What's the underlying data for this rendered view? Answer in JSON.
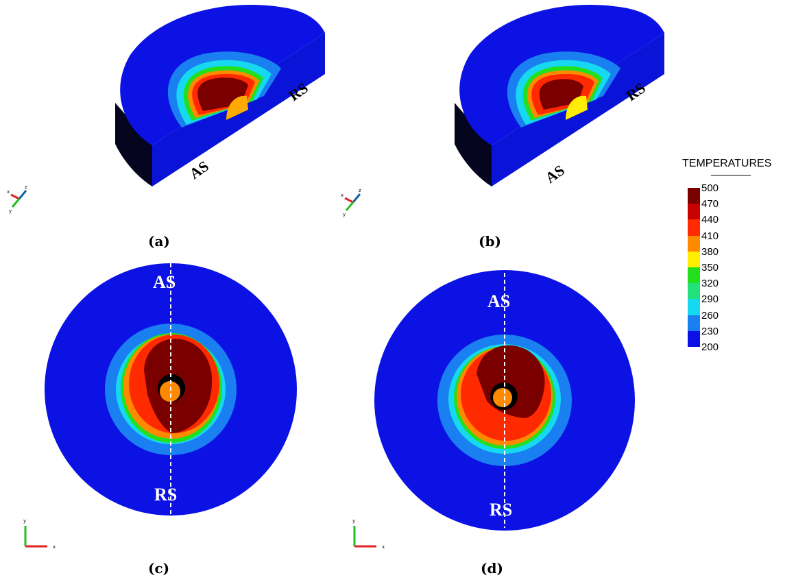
{
  "panels": [
    {
      "id": "a",
      "label": "(a)",
      "side_labels": [
        "RS",
        "AS"
      ]
    },
    {
      "id": "b",
      "label": "(b)",
      "side_labels": [
        "RS",
        "AS"
      ]
    },
    {
      "id": "c",
      "label": "(c)",
      "side_labels": [
        "AS",
        "RS"
      ]
    },
    {
      "id": "d",
      "label": "(d)",
      "side_labels": [
        "AS",
        "RS"
      ]
    }
  ],
  "axes": {
    "x": "x",
    "y": "y",
    "z": "z"
  },
  "legend": {
    "title": "TEMPERATURES",
    "ticks": [
      "500",
      "470",
      "440",
      "410",
      "380",
      "350",
      "320",
      "290",
      "260",
      "230",
      "200"
    ],
    "colors": [
      "#7a0000",
      "#c80000",
      "#ff2a00",
      "#ff8a00",
      "#ffee00",
      "#22e01e",
      "#22e07a",
      "#16d8f0",
      "#1a7ff0",
      "#0a10e6",
      "#00006e"
    ]
  }
}
